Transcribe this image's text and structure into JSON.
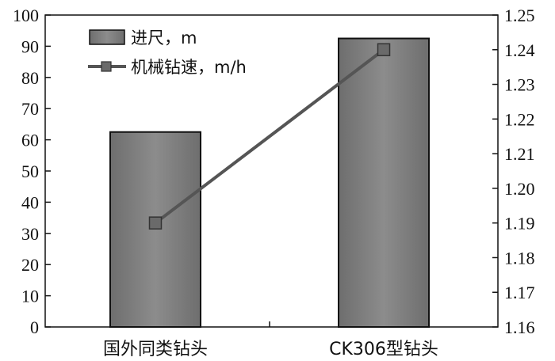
{
  "chart_data": {
    "type": "bar+line",
    "categories": [
      "国外同类钻头",
      "CK306型钻头"
    ],
    "series": [
      {
        "name": "进尺，m",
        "type": "bar",
        "axis": "left",
        "values": [
          62.5,
          92.5
        ],
        "color": "#7f7f7f"
      },
      {
        "name": "机械钻速，m/h",
        "type": "line",
        "axis": "right",
        "values": [
          1.19,
          1.24
        ],
        "color": "#555555"
      }
    ],
    "y_left": {
      "min": 0,
      "max": 100,
      "ticks": [
        "0",
        "10",
        "20",
        "30",
        "40",
        "50",
        "60",
        "70",
        "80",
        "90",
        "100"
      ]
    },
    "y_right": {
      "min": 1.16,
      "max": 1.25,
      "ticks": [
        "1.16",
        "1.17",
        "1.18",
        "1.19",
        "1.20",
        "1.21",
        "1.22",
        "1.23",
        "1.24",
        "1.25"
      ]
    },
    "grid": false,
    "legend_position": "top-left"
  }
}
